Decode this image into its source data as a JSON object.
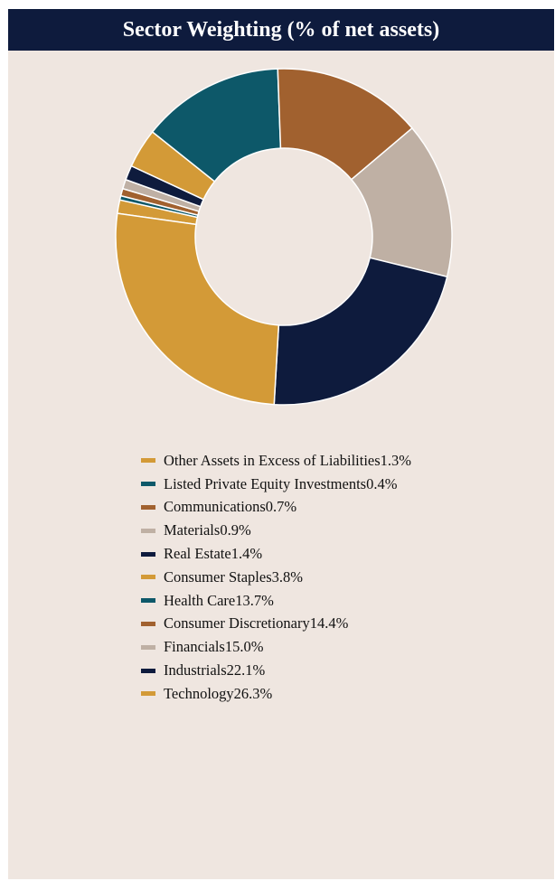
{
  "header": {
    "title": "Sector Weighting (% of net assets)"
  },
  "chart_data": {
    "type": "pie",
    "title": "Sector Weighting (% of net assets)",
    "slices": [
      {
        "label": "Other Assets in Excess of Liabilities",
        "value": 1.3,
        "display": "1.3%",
        "color": "#d39a37"
      },
      {
        "label": "Listed Private Equity Investments",
        "value": 0.4,
        "display": "0.4%",
        "color": "#0d5869"
      },
      {
        "label": "Communications",
        "value": 0.7,
        "display": "0.7%",
        "color": "#a1612f"
      },
      {
        "label": "Materials",
        "value": 0.9,
        "display": "0.9%",
        "color": "#bfb0a4"
      },
      {
        "label": "Real Estate",
        "value": 1.4,
        "display": "1.4%",
        "color": "#0e1b3d"
      },
      {
        "label": "Consumer Staples",
        "value": 3.8,
        "display": "3.8%",
        "color": "#d39a37"
      },
      {
        "label": "Health Care",
        "value": 13.7,
        "display": "13.7%",
        "color": "#0d5869"
      },
      {
        "label": "Consumer Discretionary",
        "value": 14.4,
        "display": "14.4%",
        "color": "#a1612f"
      },
      {
        "label": "Financials",
        "value": 15.0,
        "display": "15.0%",
        "color": "#bfb0a4"
      },
      {
        "label": "Industrials",
        "value": 22.1,
        "display": "22.1%",
        "color": "#0e1b3d"
      },
      {
        "label": "Technology",
        "value": 26.3,
        "display": "26.3%",
        "color": "#d39a37"
      }
    ],
    "legend_position": "bottom",
    "donut": true
  }
}
